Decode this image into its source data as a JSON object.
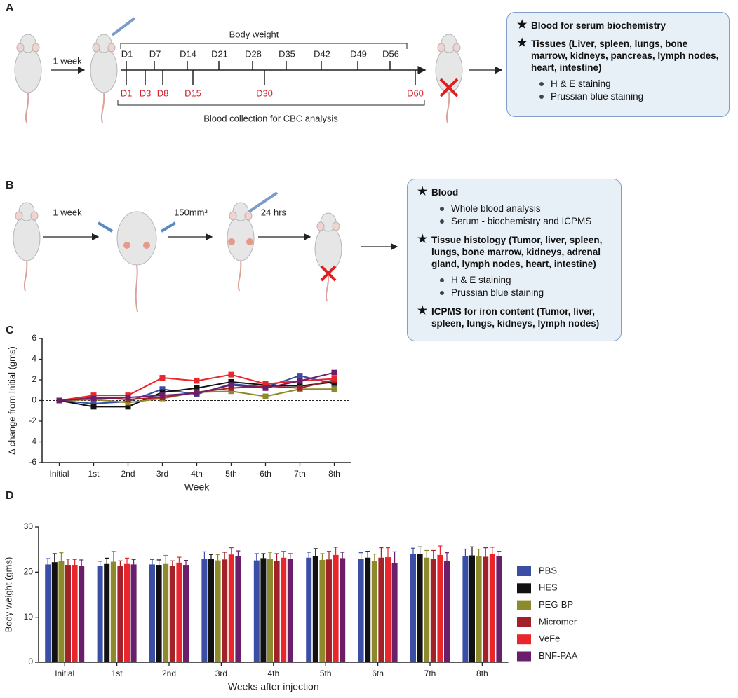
{
  "panel_a": {
    "label": "A",
    "interval": "1 week",
    "top_bracket": "Body weight",
    "weigh_days": [
      "D1",
      "D7",
      "D14",
      "D21",
      "D28",
      "D35",
      "D42",
      "D49",
      "D56"
    ],
    "blood_days": [
      "D1",
      "D3",
      "D8",
      "D15",
      "D30",
      "D60"
    ],
    "bottom_bracket": "Blood collection for CBC analysis",
    "outcomes": [
      {
        "title": "Blood for serum biochemistry"
      },
      {
        "title": "Tissues (Liver, spleen, lungs, bone marrow, kidneys, pancreas, lymph nodes, heart, intestine)",
        "items": [
          "H & E staining",
          "Prussian blue staining"
        ]
      }
    ]
  },
  "panel_b": {
    "label": "B",
    "steps": [
      "1 week",
      "150mm³",
      "24 hrs"
    ],
    "outcomes": [
      {
        "title": "Blood",
        "items": [
          "Whole blood analysis",
          "Serum - biochemistry and ICPMS"
        ]
      },
      {
        "title": "Tissue histology  (Tumor, liver, spleen, lungs, bone marrow, kidneys, adrenal gland, lymph nodes, heart, intestine)",
        "items": [
          "H & E staining",
          "Prussian blue staining"
        ]
      },
      {
        "title": "ICPMS for iron content (Tumor, liver, spleen, lungs, kidneys, lymph nodes)"
      }
    ]
  },
  "chart_data": [
    {
      "type": "line",
      "panel_label": "C",
      "y_label": "Δ change from Initial (gms)",
      "x_label": "Week",
      "categories": [
        "Initial",
        "1st",
        "2nd",
        "3rd",
        "4th",
        "5th",
        "6th",
        "7th",
        "8th"
      ],
      "ylim": [
        -6,
        6
      ],
      "yticks": [
        -6,
        -4,
        -2,
        0,
        2,
        4,
        6
      ],
      "series": [
        {
          "color": "#3b4ea6",
          "values": [
            0,
            -0.3,
            -0.1,
            1.1,
            0.6,
            1.6,
            1.3,
            2.4,
            1.6
          ]
        },
        {
          "color": "#111111",
          "values": [
            0,
            -0.6,
            -0.6,
            0.8,
            1.2,
            1.8,
            1.5,
            1.4,
            1.8
          ]
        },
        {
          "color": "#8c8a2a",
          "values": [
            0,
            0.1,
            -0.2,
            0.2,
            0.8,
            0.9,
            0.4,
            1.1,
            1.1
          ]
        },
        {
          "color": "#a3222a",
          "values": [
            0,
            0.3,
            0.1,
            0.3,
            0.8,
            1.2,
            1.4,
            1.2,
            2.0
          ]
        },
        {
          "color": "#e8262b",
          "values": [
            0,
            0.5,
            0.5,
            2.2,
            1.9,
            2.5,
            1.6,
            1.9,
            2.1
          ]
        },
        {
          "color": "#6b1f6b",
          "values": [
            0,
            0.2,
            0.3,
            0.5,
            0.7,
            1.5,
            1.2,
            1.9,
            2.7
          ]
        }
      ]
    },
    {
      "type": "bar",
      "panel_label": "D",
      "y_label": "Body weight (gms)",
      "x_label": "Weeks after injection",
      "categories": [
        "Initial",
        "1st",
        "2nd",
        "3rd",
        "4th",
        "5th",
        "6th",
        "7th",
        "8th"
      ],
      "ylim": [
        0,
        30
      ],
      "yticks": [
        0,
        10,
        20,
        30
      ],
      "series": [
        {
          "name": "PBS",
          "color": "#3b4ea6",
          "values": [
            21.7,
            21.4,
            21.7,
            22.9,
            22.6,
            23.2,
            23.0,
            24.0,
            23.6
          ],
          "errors": [
            1.3,
            1.0,
            1.1,
            1.6,
            1.5,
            1.2,
            1.3,
            1.3,
            1.5
          ]
        },
        {
          "name": "HES",
          "color": "#111111",
          "values": [
            22.2,
            21.8,
            21.6,
            23.0,
            23.1,
            23.6,
            23.2,
            24.0,
            23.7
          ],
          "errors": [
            1.9,
            1.3,
            1.1,
            0.9,
            1.0,
            1.6,
            1.4,
            1.6,
            1.9
          ]
        },
        {
          "name": "PEG-BP",
          "color": "#8c8a2a",
          "values": [
            22.4,
            22.3,
            21.8,
            22.6,
            23.0,
            22.7,
            22.5,
            23.2,
            23.6
          ],
          "errors": [
            1.9,
            2.3,
            1.9,
            1.3,
            1.4,
            1.4,
            1.5,
            1.6,
            1.5
          ]
        },
        {
          "name": "Micromer",
          "color": "#a3222a",
          "values": [
            21.6,
            21.3,
            21.3,
            22.8,
            22.5,
            22.8,
            23.2,
            23.0,
            23.4
          ],
          "errors": [
            1.3,
            1.2,
            1.2,
            1.6,
            1.6,
            1.8,
            2.2,
            1.8,
            2.0
          ]
        },
        {
          "name": "VeFe",
          "color": "#e8262b",
          "values": [
            21.6,
            21.8,
            22.1,
            23.9,
            23.2,
            23.8,
            23.3,
            23.8,
            24.0
          ],
          "errors": [
            1.2,
            1.3,
            1.2,
            1.5,
            1.4,
            1.7,
            2.1,
            2.0,
            1.5
          ]
        },
        {
          "name": "BNF-PAA",
          "color": "#6b1f6b",
          "values": [
            21.3,
            21.7,
            21.6,
            23.5,
            23.0,
            23.1,
            22.0,
            22.5,
            23.6
          ],
          "errors": [
            1.4,
            1.1,
            1.0,
            1.2,
            1.1,
            1.3,
            2.5,
            1.8,
            1.0
          ]
        }
      ]
    }
  ]
}
